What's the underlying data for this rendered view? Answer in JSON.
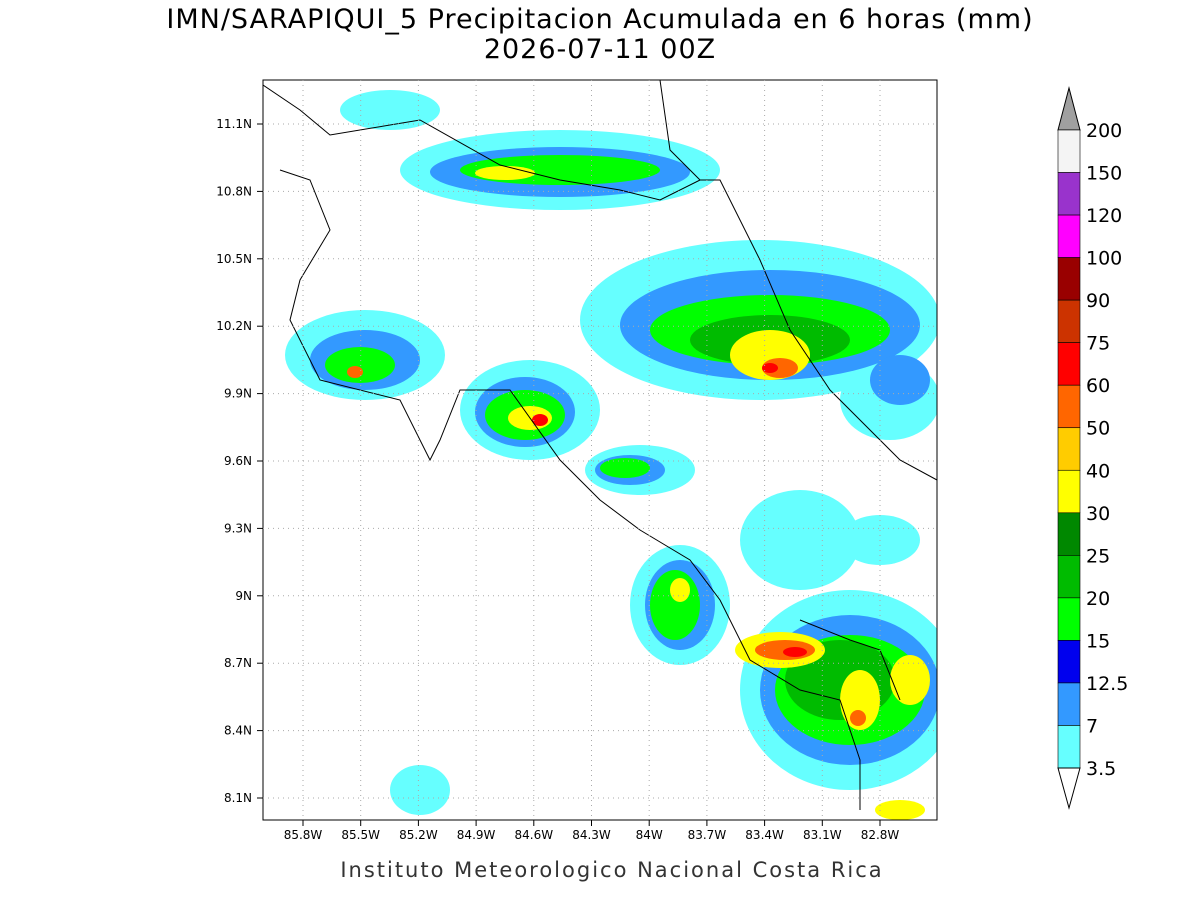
{
  "map": {
    "title": "IMN/SARAPIQUI_5 Precipitacion Acumulada en 6 horas (mm)",
    "subtitle": "2026-07-11 00Z",
    "lat_ticks": [
      "11.1N",
      "10.8N",
      "10.5N",
      "10.2N",
      "9.9N",
      "9.6N",
      "9.3N",
      "9N",
      "8.7N",
      "8.4N",
      "8.1N"
    ],
    "lon_ticks": [
      "85.8W",
      "85.5W",
      "85.2W",
      "84.9W",
      "84.6W",
      "84.3W",
      "84W",
      "83.7W",
      "83.4W",
      "83.1W",
      "82.8W"
    ],
    "colorbar": {
      "labels": [
        "200",
        "150",
        "120",
        "100",
        "90",
        "75",
        "60",
        "50",
        "40",
        "30",
        "25",
        "20",
        "15",
        "12.5",
        "7",
        "3.5"
      ],
      "colors": [
        "#f4f4f4",
        "#9933cc",
        "#ff00ff",
        "#990000",
        "#cc3300",
        "#ff0000",
        "#ff6600",
        "#ffcc00",
        "#ffff00",
        "#008800",
        "#00bb00",
        "#00ff00",
        "#0000ee",
        "#3399ff",
        "#66ffff"
      ]
    },
    "footer": "Instituto Meteorologico Nacional Costa Rica"
  }
}
